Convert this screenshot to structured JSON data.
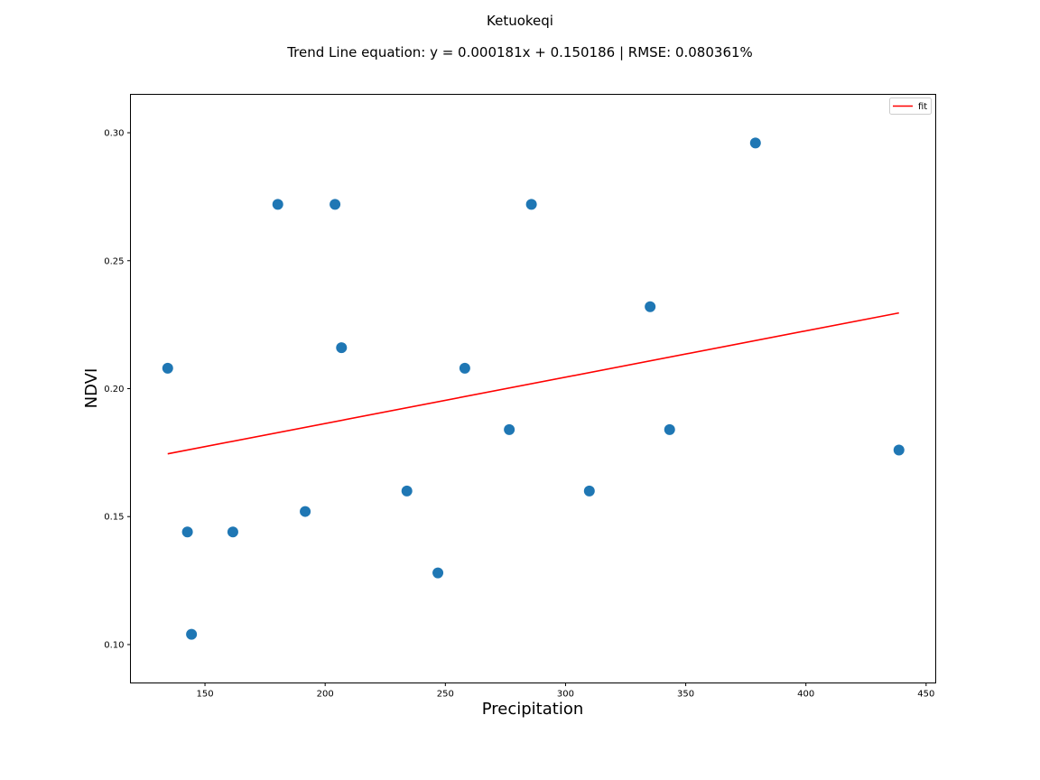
{
  "chart_data": {
    "type": "scatter",
    "title": "Ketuokeqi",
    "subtitle": "Trend Line equation: y = 0.000181x + 0.150186 | RMSE: 0.080361%",
    "xlabel": "Precipitation",
    "ylabel": "NDVI",
    "xlim": [
      119,
      454
    ],
    "ylim": [
      0.085,
      0.315
    ],
    "xticks": [
      150,
      200,
      250,
      300,
      350,
      400,
      450
    ],
    "xtick_labels": [
      "150",
      "200",
      "250",
      "300",
      "350",
      "400",
      "450"
    ],
    "yticks": [
      0.1,
      0.15,
      0.2,
      0.25,
      0.3
    ],
    "ytick_labels": [
      "0.10",
      "0.15",
      "0.20",
      "0.25",
      "0.30"
    ],
    "grid": false,
    "legend": {
      "placement": "top-right",
      "entries": [
        "fit"
      ]
    },
    "points_color": "#1f77b4",
    "points": [
      {
        "x": 134.5,
        "y": 0.208
      },
      {
        "x": 142.7,
        "y": 0.144
      },
      {
        "x": 144.4,
        "y": 0.104
      },
      {
        "x": 161.6,
        "y": 0.144
      },
      {
        "x": 180.3,
        "y": 0.272
      },
      {
        "x": 191.7,
        "y": 0.152
      },
      {
        "x": 204.1,
        "y": 0.272
      },
      {
        "x": 206.8,
        "y": 0.216
      },
      {
        "x": 234.0,
        "y": 0.16
      },
      {
        "x": 246.9,
        "y": 0.128
      },
      {
        "x": 258.1,
        "y": 0.208
      },
      {
        "x": 276.6,
        "y": 0.184
      },
      {
        "x": 285.8,
        "y": 0.272
      },
      {
        "x": 309.9,
        "y": 0.16
      },
      {
        "x": 335.2,
        "y": 0.232
      },
      {
        "x": 343.3,
        "y": 0.184
      },
      {
        "x": 379.0,
        "y": 0.296
      },
      {
        "x": 438.7,
        "y": 0.176
      }
    ],
    "fit": {
      "name": "fit",
      "color": "#ff0000",
      "slope": 0.000181,
      "intercept": 0.150186,
      "x_range": [
        134.5,
        438.7
      ]
    }
  }
}
